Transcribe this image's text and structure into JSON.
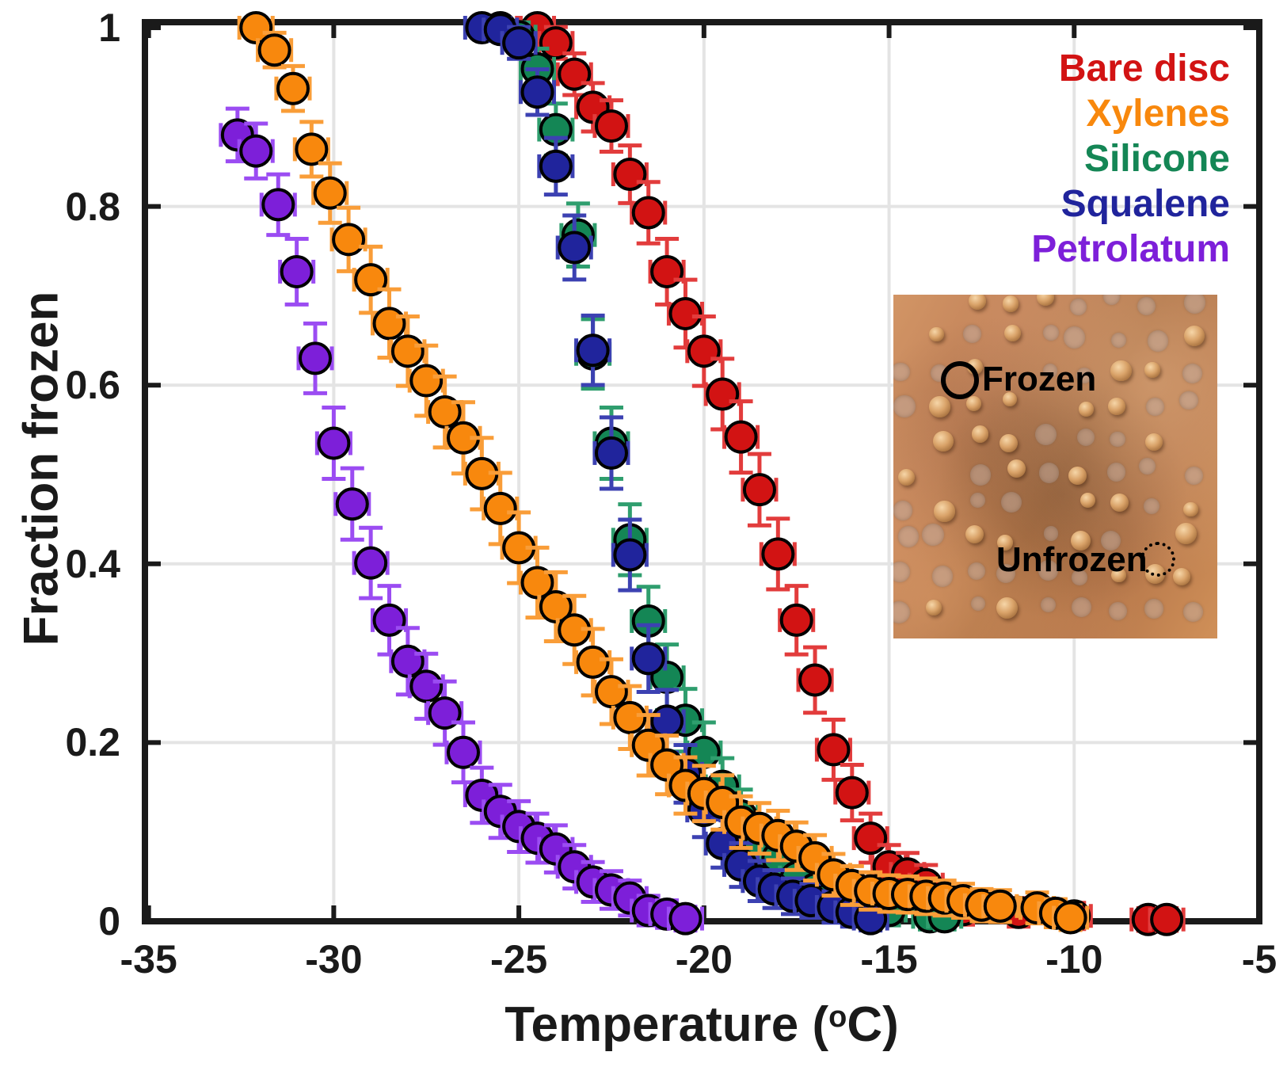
{
  "figure": {
    "background": "#ffffff"
  },
  "chart_data": {
    "type": "scatter",
    "title": "",
    "xlabel_parts": {
      "prefix": "Temperature (",
      "sup": "o",
      "suffix": "C)"
    },
    "ylabel": "Fraction frozen",
    "xlim": [
      -35.1,
      -5
    ],
    "ylim": [
      0,
      1.0
    ],
    "x_ticks": [
      -35,
      -30,
      -25,
      -20,
      -15,
      -10,
      -5
    ],
    "x_tick_labels": [
      "-35",
      "-30",
      "-25",
      "-20",
      "-15",
      "-10",
      "-5"
    ],
    "y_ticks": [
      0,
      0.2,
      0.4,
      0.6,
      0.8,
      1
    ],
    "y_tick_labels": [
      "0",
      "0.2",
      "0.4",
      "0.6",
      "0.8",
      "1"
    ],
    "x_gridlines": [
      -30,
      -25,
      -20,
      -15,
      -10
    ],
    "y_gridlines": [
      0.2,
      0.4,
      0.6,
      0.8
    ],
    "grid_on": true,
    "grid_color": "#e4e4e4",
    "axis_color": "#1a1a1a",
    "legend_position": "top-right inside axes",
    "error_model": {
      "x_halfwidth_degC": 0.45,
      "y_base": 0.01,
      "y_scale": 0.06
    },
    "draw_order": [
      "bare_disc",
      "silicone",
      "squalene",
      "xylenes",
      "petrolatum"
    ],
    "series": [
      {
        "id": "bare_disc",
        "name": "Bare disc",
        "marker_color": "#d21313",
        "bar_color": "#e23c3c",
        "points": [
          [
            -25.5,
            1.0
          ],
          [
            -24.5,
            1.0
          ],
          [
            -24.0,
            0.983
          ],
          [
            -23.5,
            0.948
          ],
          [
            -23.0,
            0.911
          ],
          [
            -22.5,
            0.89
          ],
          [
            -22.0,
            0.836
          ],
          [
            -21.5,
            0.793
          ],
          [
            -21.0,
            0.727
          ],
          [
            -20.5,
            0.68
          ],
          [
            -20.0,
            0.638
          ],
          [
            -19.5,
            0.59
          ],
          [
            -19.0,
            0.542
          ],
          [
            -18.5,
            0.483
          ],
          [
            -18.0,
            0.411
          ],
          [
            -17.5,
            0.337
          ],
          [
            -17.0,
            0.27
          ],
          [
            -16.5,
            0.192
          ],
          [
            -16.0,
            0.144
          ],
          [
            -15.5,
            0.093
          ],
          [
            -15.0,
            0.061
          ],
          [
            -14.5,
            0.053
          ],
          [
            -14.0,
            0.041
          ],
          [
            -13.0,
            0.013
          ],
          [
            -11.5,
            0.01
          ],
          [
            -10.0,
            0.006
          ],
          [
            -8.0,
            0.002
          ],
          [
            -7.5,
            0.002
          ]
        ]
      },
      {
        "id": "xylenes",
        "name": "Xylenes",
        "marker_color": "#f8880d",
        "bar_color": "#f99d38",
        "points": [
          [
            -32.1,
            1.0
          ],
          [
            -31.6,
            0.975
          ],
          [
            -31.1,
            0.932
          ],
          [
            -30.6,
            0.864
          ],
          [
            -30.1,
            0.815
          ],
          [
            -29.6,
            0.763
          ],
          [
            -29.0,
            0.718
          ],
          [
            -28.5,
            0.669
          ],
          [
            -28.0,
            0.638
          ],
          [
            -27.5,
            0.605
          ],
          [
            -27.0,
            0.57
          ],
          [
            -26.5,
            0.541
          ],
          [
            -26.0,
            0.501
          ],
          [
            -25.5,
            0.462
          ],
          [
            -25.0,
            0.418
          ],
          [
            -24.5,
            0.379
          ],
          [
            -24.0,
            0.352
          ],
          [
            -23.5,
            0.326
          ],
          [
            -23.0,
            0.29
          ],
          [
            -22.5,
            0.257
          ],
          [
            -22.0,
            0.228
          ],
          [
            -21.5,
            0.197
          ],
          [
            -21.0,
            0.175
          ],
          [
            -20.5,
            0.152
          ],
          [
            -20.0,
            0.143
          ],
          [
            -19.5,
            0.133
          ],
          [
            -19.0,
            0.111
          ],
          [
            -18.5,
            0.104
          ],
          [
            -18.0,
            0.096
          ],
          [
            -17.5,
            0.084
          ],
          [
            -17.0,
            0.071
          ],
          [
            -16.5,
            0.052
          ],
          [
            -16.0,
            0.04
          ],
          [
            -15.5,
            0.034
          ],
          [
            -15.0,
            0.031
          ],
          [
            -14.5,
            0.03
          ],
          [
            -14.0,
            0.028
          ],
          [
            -13.5,
            0.026
          ],
          [
            -13.0,
            0.023
          ],
          [
            -12.5,
            0.018
          ],
          [
            -12.0,
            0.017
          ],
          [
            -11.0,
            0.015
          ],
          [
            -10.5,
            0.009
          ],
          [
            -10.1,
            0.004
          ]
        ]
      },
      {
        "id": "silicone",
        "name": "Silicone",
        "marker_color": "#148655",
        "bar_color": "#2f9e6e",
        "points": [
          [
            -25.0,
            0.99
          ],
          [
            -24.5,
            0.954
          ],
          [
            -24.0,
            0.886
          ],
          [
            -23.4,
            0.768
          ],
          [
            -23.0,
            0.635
          ],
          [
            -22.5,
            0.535
          ],
          [
            -22.0,
            0.427
          ],
          [
            -21.5,
            0.336
          ],
          [
            -21.0,
            0.273
          ],
          [
            -20.5,
            0.225
          ],
          [
            -20.0,
            0.189
          ],
          [
            -19.5,
            0.151
          ],
          [
            -19.0,
            0.118
          ],
          [
            -18.5,
            0.084
          ],
          [
            -18.0,
            0.071
          ],
          [
            -17.5,
            0.049
          ],
          [
            -17.0,
            0.036
          ],
          [
            -16.5,
            0.031
          ],
          [
            -16.0,
            0.029
          ],
          [
            -15.5,
            0.025
          ],
          [
            -15.0,
            0.012
          ],
          [
            -13.9,
            0.005
          ],
          [
            -13.5,
            0.005
          ]
        ]
      },
      {
        "id": "squalene",
        "name": "Squalene",
        "marker_color": "#20249c",
        "bar_color": "#3c41b2",
        "points": [
          [
            -26.0,
            1.0
          ],
          [
            -25.5,
            0.998
          ],
          [
            -25.0,
            0.983
          ],
          [
            -24.5,
            0.928
          ],
          [
            -24.0,
            0.845
          ],
          [
            -23.5,
            0.754
          ],
          [
            -23.0,
            0.639
          ],
          [
            -22.5,
            0.524
          ],
          [
            -22.0,
            0.41
          ],
          [
            -21.5,
            0.294
          ],
          [
            -21.0,
            0.224
          ],
          [
            -20.5,
            0.165
          ],
          [
            -20.0,
            0.124
          ],
          [
            -19.5,
            0.087
          ],
          [
            -19.0,
            0.063
          ],
          [
            -18.5,
            0.045
          ],
          [
            -18.1,
            0.036
          ],
          [
            -17.6,
            0.028
          ],
          [
            -17.1,
            0.023
          ],
          [
            -16.5,
            0.016
          ],
          [
            -16.0,
            0.01
          ],
          [
            -15.5,
            0.003
          ]
        ]
      },
      {
        "id": "petrolatum",
        "name": "Petrolatum",
        "marker_color": "#7d1fd9",
        "bar_color": "#9b4cf2",
        "points": [
          [
            -32.6,
            0.88
          ],
          [
            -32.1,
            0.862
          ],
          [
            -31.5,
            0.802
          ],
          [
            -31.0,
            0.727
          ],
          [
            -30.5,
            0.63
          ],
          [
            -30.0,
            0.535
          ],
          [
            -29.5,
            0.467
          ],
          [
            -29.0,
            0.401
          ],
          [
            -28.5,
            0.337
          ],
          [
            -28.0,
            0.291
          ],
          [
            -27.5,
            0.263
          ],
          [
            -27.0,
            0.233
          ],
          [
            -26.5,
            0.189
          ],
          [
            -26.0,
            0.141
          ],
          [
            -25.5,
            0.123
          ],
          [
            -25.0,
            0.106
          ],
          [
            -24.5,
            0.093
          ],
          [
            -24.0,
            0.081
          ],
          [
            -23.5,
            0.061
          ],
          [
            -23.0,
            0.044
          ],
          [
            -22.5,
            0.035
          ],
          [
            -22.0,
            0.026
          ],
          [
            -21.5,
            0.012
          ],
          [
            -21.0,
            0.008
          ],
          [
            -20.5,
            0.003
          ]
        ]
      }
    ]
  },
  "legend": {
    "items": [
      {
        "label": "Bare disc",
        "color": "#d21313"
      },
      {
        "label": "Xylenes",
        "color": "#f8880d"
      },
      {
        "label": "Silicone",
        "color": "#148655"
      },
      {
        "label": "Squalene",
        "color": "#20249c"
      },
      {
        "label": "Petrolatum",
        "color": "#7d1fd9"
      }
    ]
  },
  "inset": {
    "frozen_label": "Frozen",
    "unfrozen_label": "Unfrozen"
  }
}
